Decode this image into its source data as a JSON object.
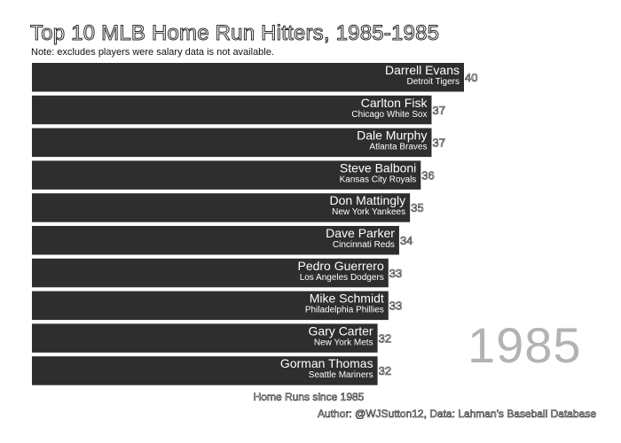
{
  "chart_data": {
    "type": "bar",
    "orientation": "horizontal",
    "title": "Top 10 MLB Home Run Hitters, 1985-1985",
    "subtitle": "Note: excludes players were salary data is not available.",
    "xlabel": "Home Runs since 1985",
    "caption": "Author: @WJSutton12, Data: Lahman's Baseball Database",
    "year_label": "1985",
    "bar_color": "#2e2e2e",
    "year_color": "#b3b3b3",
    "xlim": [
      0,
      40
    ],
    "grid": false,
    "categories": [
      "Darrell Evans",
      "Carlton Fisk",
      "Dale Murphy",
      "Steve Balboni",
      "Don Mattingly",
      "Dave Parker",
      "Pedro Guerrero",
      "Mike Schmidt",
      "Gary Carter",
      "Gorman Thomas"
    ],
    "teams": [
      "Detroit Tigers",
      "Chicago White Sox",
      "Atlanta Braves",
      "Kansas City Royals",
      "New York Yankees",
      "Cincinnati Reds",
      "Los Angeles Dodgers",
      "Philadelphia Phillies",
      "New York Mets",
      "Seattle Mariners"
    ],
    "values": [
      40,
      37,
      37,
      36,
      35,
      34,
      33,
      33,
      32,
      32
    ]
  }
}
